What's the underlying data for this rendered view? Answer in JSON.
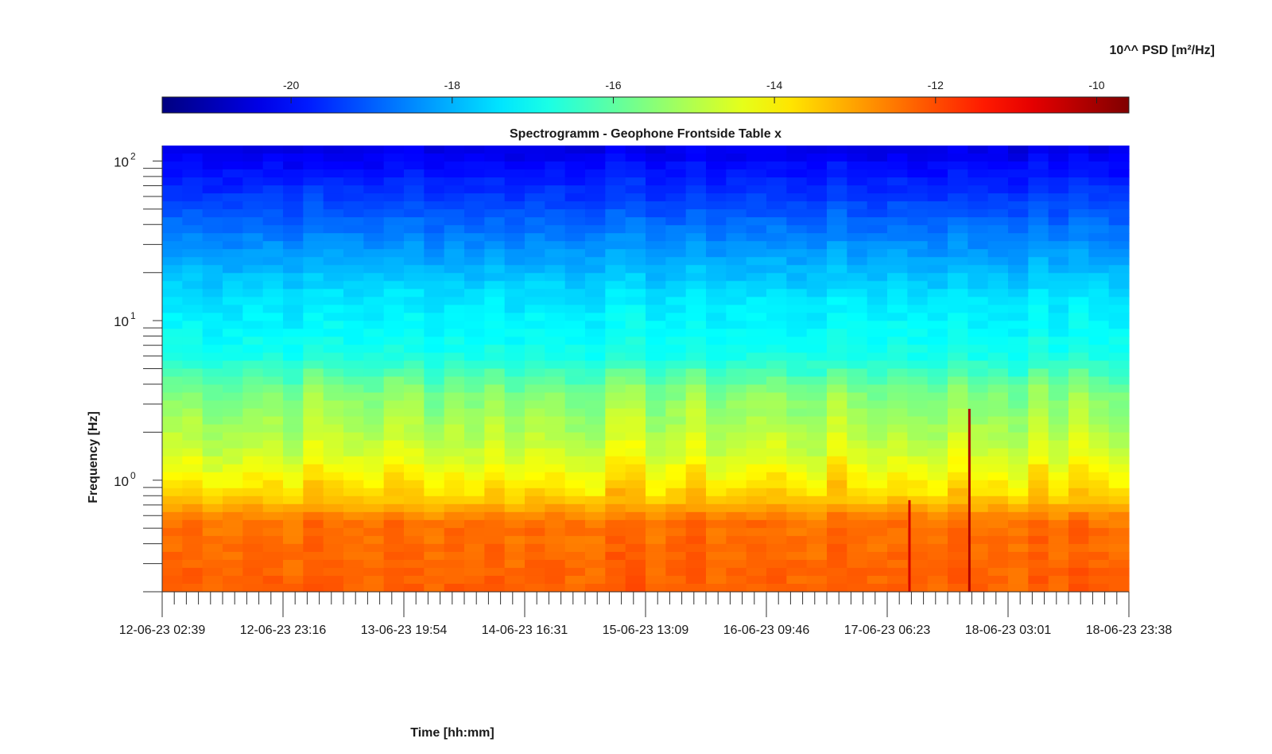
{
  "chart_data": {
    "type": "heatmap",
    "title": "Spectrogramm - Geophone Frontside Table x",
    "xlabel": "Time [hh:mm]",
    "ylabel": "Frequency [Hz]",
    "colorbar": {
      "label": "10^^ PSD [m²/Hz]",
      "range": [
        -21.6,
        -9.6
      ],
      "ticks": [
        -20,
        -18,
        -16,
        -14,
        -12,
        -10
      ],
      "colormap": "jet"
    },
    "x": {
      "tick_labels": [
        "12-06-23 02:39",
        "12-06-23 23:16",
        "13-06-23 19:54",
        "14-06-23 16:31",
        "15-06-23 13:09",
        "16-06-23 09:46",
        "17-06-23 06:23",
        "18-06-23 03:01",
        "18-06-23 23:38"
      ]
    },
    "y": {
      "scale": "log",
      "range": [
        0.2,
        125
      ],
      "ticks": [
        {
          "base": "10",
          "exp": "2",
          "value": 100
        },
        {
          "base": "10",
          "exp": "1",
          "value": 10
        },
        {
          "base": "10",
          "exp": "0",
          "value": 1
        }
      ]
    },
    "psd_profile": [
      {
        "hz": 0.2,
        "log10_psd": -12.2
      },
      {
        "hz": 0.55,
        "log10_psd": -12.4
      },
      {
        "hz": 0.75,
        "log10_psd": -13.4
      },
      {
        "hz": 1.5,
        "log10_psd": -14.6
      },
      {
        "hz": 3.5,
        "log10_psd": -15.5
      },
      {
        "hz": 6,
        "log10_psd": -16.8
      },
      {
        "hz": 14,
        "log10_psd": -17.4
      },
      {
        "hz": 30,
        "log10_psd": -18.4
      },
      {
        "hz": 60,
        "log10_psd": -19.4
      },
      {
        "hz": 125,
        "log10_psd": -20.4
      }
    ],
    "events": [
      {
        "label": "17-06-23 06:23",
        "fraction": 0.773,
        "log10_psd": -10.6
      },
      {
        "label": "18-06-23 03:01",
        "fraction": 0.835,
        "log10_psd": -10.2
      }
    ]
  }
}
